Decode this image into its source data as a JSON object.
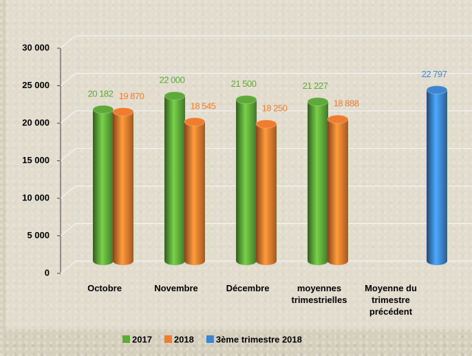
{
  "chart_data": {
    "type": "bar",
    "categories": [
      "Octobre",
      "Novembre",
      "Décembre",
      "moyennes trimestrielles",
      "Moyenne du trimestre précédent"
    ],
    "series": [
      {
        "name": "2017",
        "color": "#5fa83a",
        "values": [
          20182,
          22000,
          21500,
          21227,
          null
        ],
        "value_labels": [
          "20 182",
          "22 000",
          "21 500",
          "21 227",
          null
        ]
      },
      {
        "name": "2018",
        "color": "#ee7d2f",
        "values": [
          19870,
          18545,
          18250,
          18888,
          null
        ],
        "value_labels": [
          "19 870",
          "18 545",
          "18 250",
          "18 888",
          null
        ]
      },
      {
        "name": "3ème trimestre 2018",
        "color": "#3d86cf",
        "values": [
          null,
          null,
          null,
          null,
          22797
        ],
        "value_labels": [
          null,
          null,
          null,
          null,
          "22 797"
        ]
      }
    ],
    "ylim": [
      0,
      30000
    ],
    "yticks": [
      0,
      {
        "value": 5000,
        "label": "5 000"
      },
      {
        "value": 10000,
        "label": "10 000"
      },
      {
        "value": 15000,
        "label": "15 000"
      },
      {
        "value": 20000,
        "label": "20 000"
      },
      {
        "value": 25000,
        "label": "25 000"
      },
      {
        "value": 30000,
        "label": "30 000"
      }
    ],
    "grid": true,
    "legend": "bottom"
  }
}
